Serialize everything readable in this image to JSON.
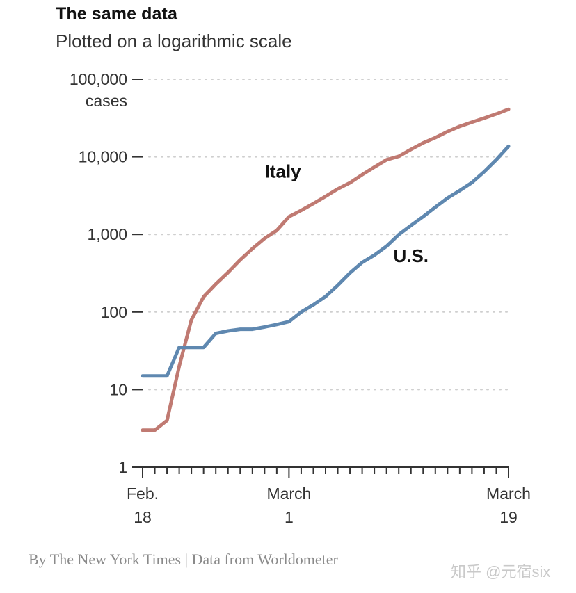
{
  "chart_data": {
    "type": "line",
    "title": "The same data",
    "subtitle": "Plotted on a logarithmic scale",
    "yscale": "log",
    "ylim": [
      1,
      100000
    ],
    "y_ticks": [
      {
        "value": 1,
        "label": "1"
      },
      {
        "value": 10,
        "label": "10"
      },
      {
        "value": 100,
        "label": "100"
      },
      {
        "value": 1000,
        "label": "1,000"
      },
      {
        "value": 10000,
        "label": "10,000"
      },
      {
        "value": 100000,
        "label": "100,000"
      }
    ],
    "y_unit_label": "cases",
    "x_start": "Feb. 18",
    "x_end": "March 19",
    "x_tick_labels": [
      {
        "day": 0,
        "line1": "Feb.",
        "line2": "18"
      },
      {
        "day": 12,
        "line1": "March",
        "line2": "1"
      },
      {
        "day": 30,
        "line1": "March",
        "line2": "19"
      }
    ],
    "series": [
      {
        "name": "Italy",
        "color": "#c07a72",
        "values": [
          3,
          3,
          4,
          20,
          79,
          157,
          229,
          323,
          470,
          655,
          888,
          1128,
          1694,
          2036,
          2502,
          3089,
          3858,
          4636,
          5883,
          7375,
          9172,
          10149,
          12462,
          15113,
          17660,
          21157,
          24747,
          27980,
          31506,
          35713,
          41035
        ]
      },
      {
        "name": "U.S.",
        "color": "#5f88b0",
        "values": [
          15,
          15,
          15,
          35,
          35,
          35,
          53,
          57,
          60,
          60,
          64,
          69,
          75,
          100,
          124,
          158,
          221,
          319,
          435,
          541,
          704,
          994,
          1301,
          1697,
          2247,
          2943,
          3680,
          4663,
          6411,
          9197,
          13677
        ]
      }
    ],
    "grid": true
  },
  "footer": {
    "credit": "By The New York Times | Data from Worldometer",
    "watermark": "知乎 @元宿six"
  }
}
